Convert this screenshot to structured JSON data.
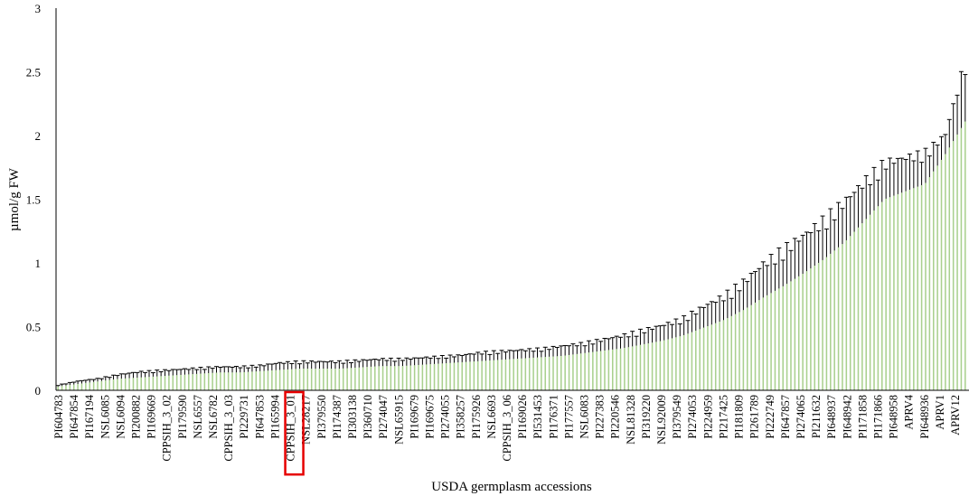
{
  "chart_data": {
    "type": "bar",
    "xlabel": "USDA germplasm  accessions",
    "ylabel": "µmol/g FW",
    "ylim": [
      0,
      3
    ],
    "yticks": [
      "0",
      "0.5",
      "1",
      "1.5",
      "2",
      "2.5",
      "3"
    ],
    "grid": false,
    "legend": "none",
    "bar_count": 230,
    "bar_color": "#a9d08e",
    "error_color": "#000000",
    "highlight_color": "#e60000",
    "highlighted_label": "CPPSIH_3_01",
    "labeled_categories": [
      "PI604783",
      "PI647854",
      "PI167194",
      "NSL6085",
      "NSL6094",
      "PI200882",
      "PI169669",
      "CPPSIH_3_02",
      "PI179590",
      "NSL6557",
      "NSL6782",
      "CPPSIH_3_03",
      "PI229731",
      "PI647853",
      "PI165994",
      "CPPSIH_3_01",
      "NSL28217",
      "PI379550",
      "PI174387",
      "PI303138",
      "PI360710",
      "PI274047",
      "NSL65915",
      "PI169679",
      "PI169675",
      "PI274055",
      "PI358257",
      "PI175926",
      "NSL6693",
      "CPPSIH_3_06",
      "PI169026",
      "PI531453",
      "PI176371",
      "PI177557",
      "NSL6083",
      "PI227383",
      "PI220546",
      "NSL81328",
      "PI319220",
      "NSL92009",
      "PI379549",
      "PI274053",
      "PI224959",
      "PI217425",
      "PI181809",
      "PI261789",
      "PI222749",
      "PI647857",
      "PI274065",
      "PI211632",
      "PI648937",
      "PI648942",
      "PI171858",
      "PI171866",
      "PI648958",
      "APRV4",
      "PI648936",
      "APRV1",
      "APRV12"
    ],
    "mean_values": [
      0.03,
      0.05,
      0.07,
      0.09,
      0.1,
      0.11,
      0.12,
      0.13,
      0.14,
      0.14,
      0.15,
      0.16,
      0.17,
      0.17,
      0.17,
      0.18,
      0.19,
      0.19,
      0.2,
      0.21,
      0.22,
      0.23,
      0.24,
      0.25,
      0.26,
      0.27,
      0.29,
      0.31,
      0.33,
      0.36,
      0.39,
      0.43,
      0.49,
      0.55,
      0.63,
      0.73,
      0.82,
      0.92,
      1.03,
      1.16,
      1.33,
      1.5,
      1.56,
      1.62,
      1.85,
      2.11
    ],
    "error_values": [
      0.01,
      0.02,
      0.02,
      0.03,
      0.04,
      0.04,
      0.04,
      0.04,
      0.04,
      0.04,
      0.04,
      0.05,
      0.05,
      0.05,
      0.05,
      0.05,
      0.05,
      0.05,
      0.05,
      0.05,
      0.05,
      0.06,
      0.06,
      0.06,
      0.06,
      0.07,
      0.07,
      0.08,
      0.09,
      0.1,
      0.11,
      0.12,
      0.15,
      0.17,
      0.2,
      0.24,
      0.26,
      0.27,
      0.28,
      0.29,
      0.28,
      0.26,
      0.24,
      0.22,
      0.14,
      0.42
    ]
  }
}
